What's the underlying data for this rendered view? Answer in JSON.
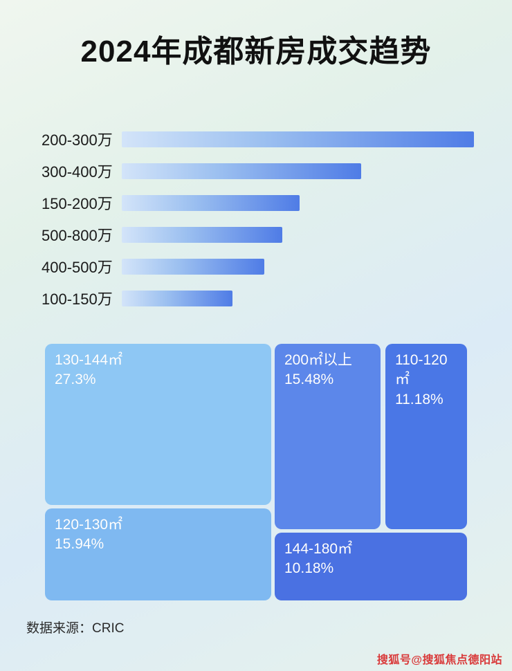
{
  "title": "2024年成都新房成交趋势",
  "chart_data": [
    {
      "type": "bar",
      "orientation": "horizontal",
      "categories": [
        "200-300万",
        "300-400万",
        "150-200万",
        "500-800万",
        "400-500万",
        "100-150万"
      ],
      "values_pct_of_max": [
        100,
        68,
        50.5,
        45.5,
        40.5,
        31.5
      ],
      "bar_gradient": [
        "#d3e4f9",
        "#4f7ce6"
      ],
      "legend": "none",
      "grid": "off"
    },
    {
      "type": "treemap",
      "items": [
        {
          "label": "130-144㎡",
          "value": "27.3%",
          "color": "#8ec7f4"
        },
        {
          "label": "200㎡以上",
          "value": "15.48%",
          "color": "#5c87ea"
        },
        {
          "label": "110-120㎡",
          "value": "11.18%",
          "color": "#4a77e6"
        },
        {
          "label": "120-130㎡",
          "value": "15.94%",
          "color": "#7fb9f1"
        },
        {
          "label": "144-180㎡",
          "value": "10.18%",
          "color": "#4a71e2"
        }
      ]
    }
  ],
  "footer": {
    "source_label": "数据来源：CRIC"
  },
  "watermark": "搜狐号@搜狐焦点德阳站",
  "colors": {
    "background_top": "#f0f6ef",
    "background_bottom": "#e6f2ec",
    "title_text": "#111111",
    "watermark_red": "#d93a3a"
  }
}
